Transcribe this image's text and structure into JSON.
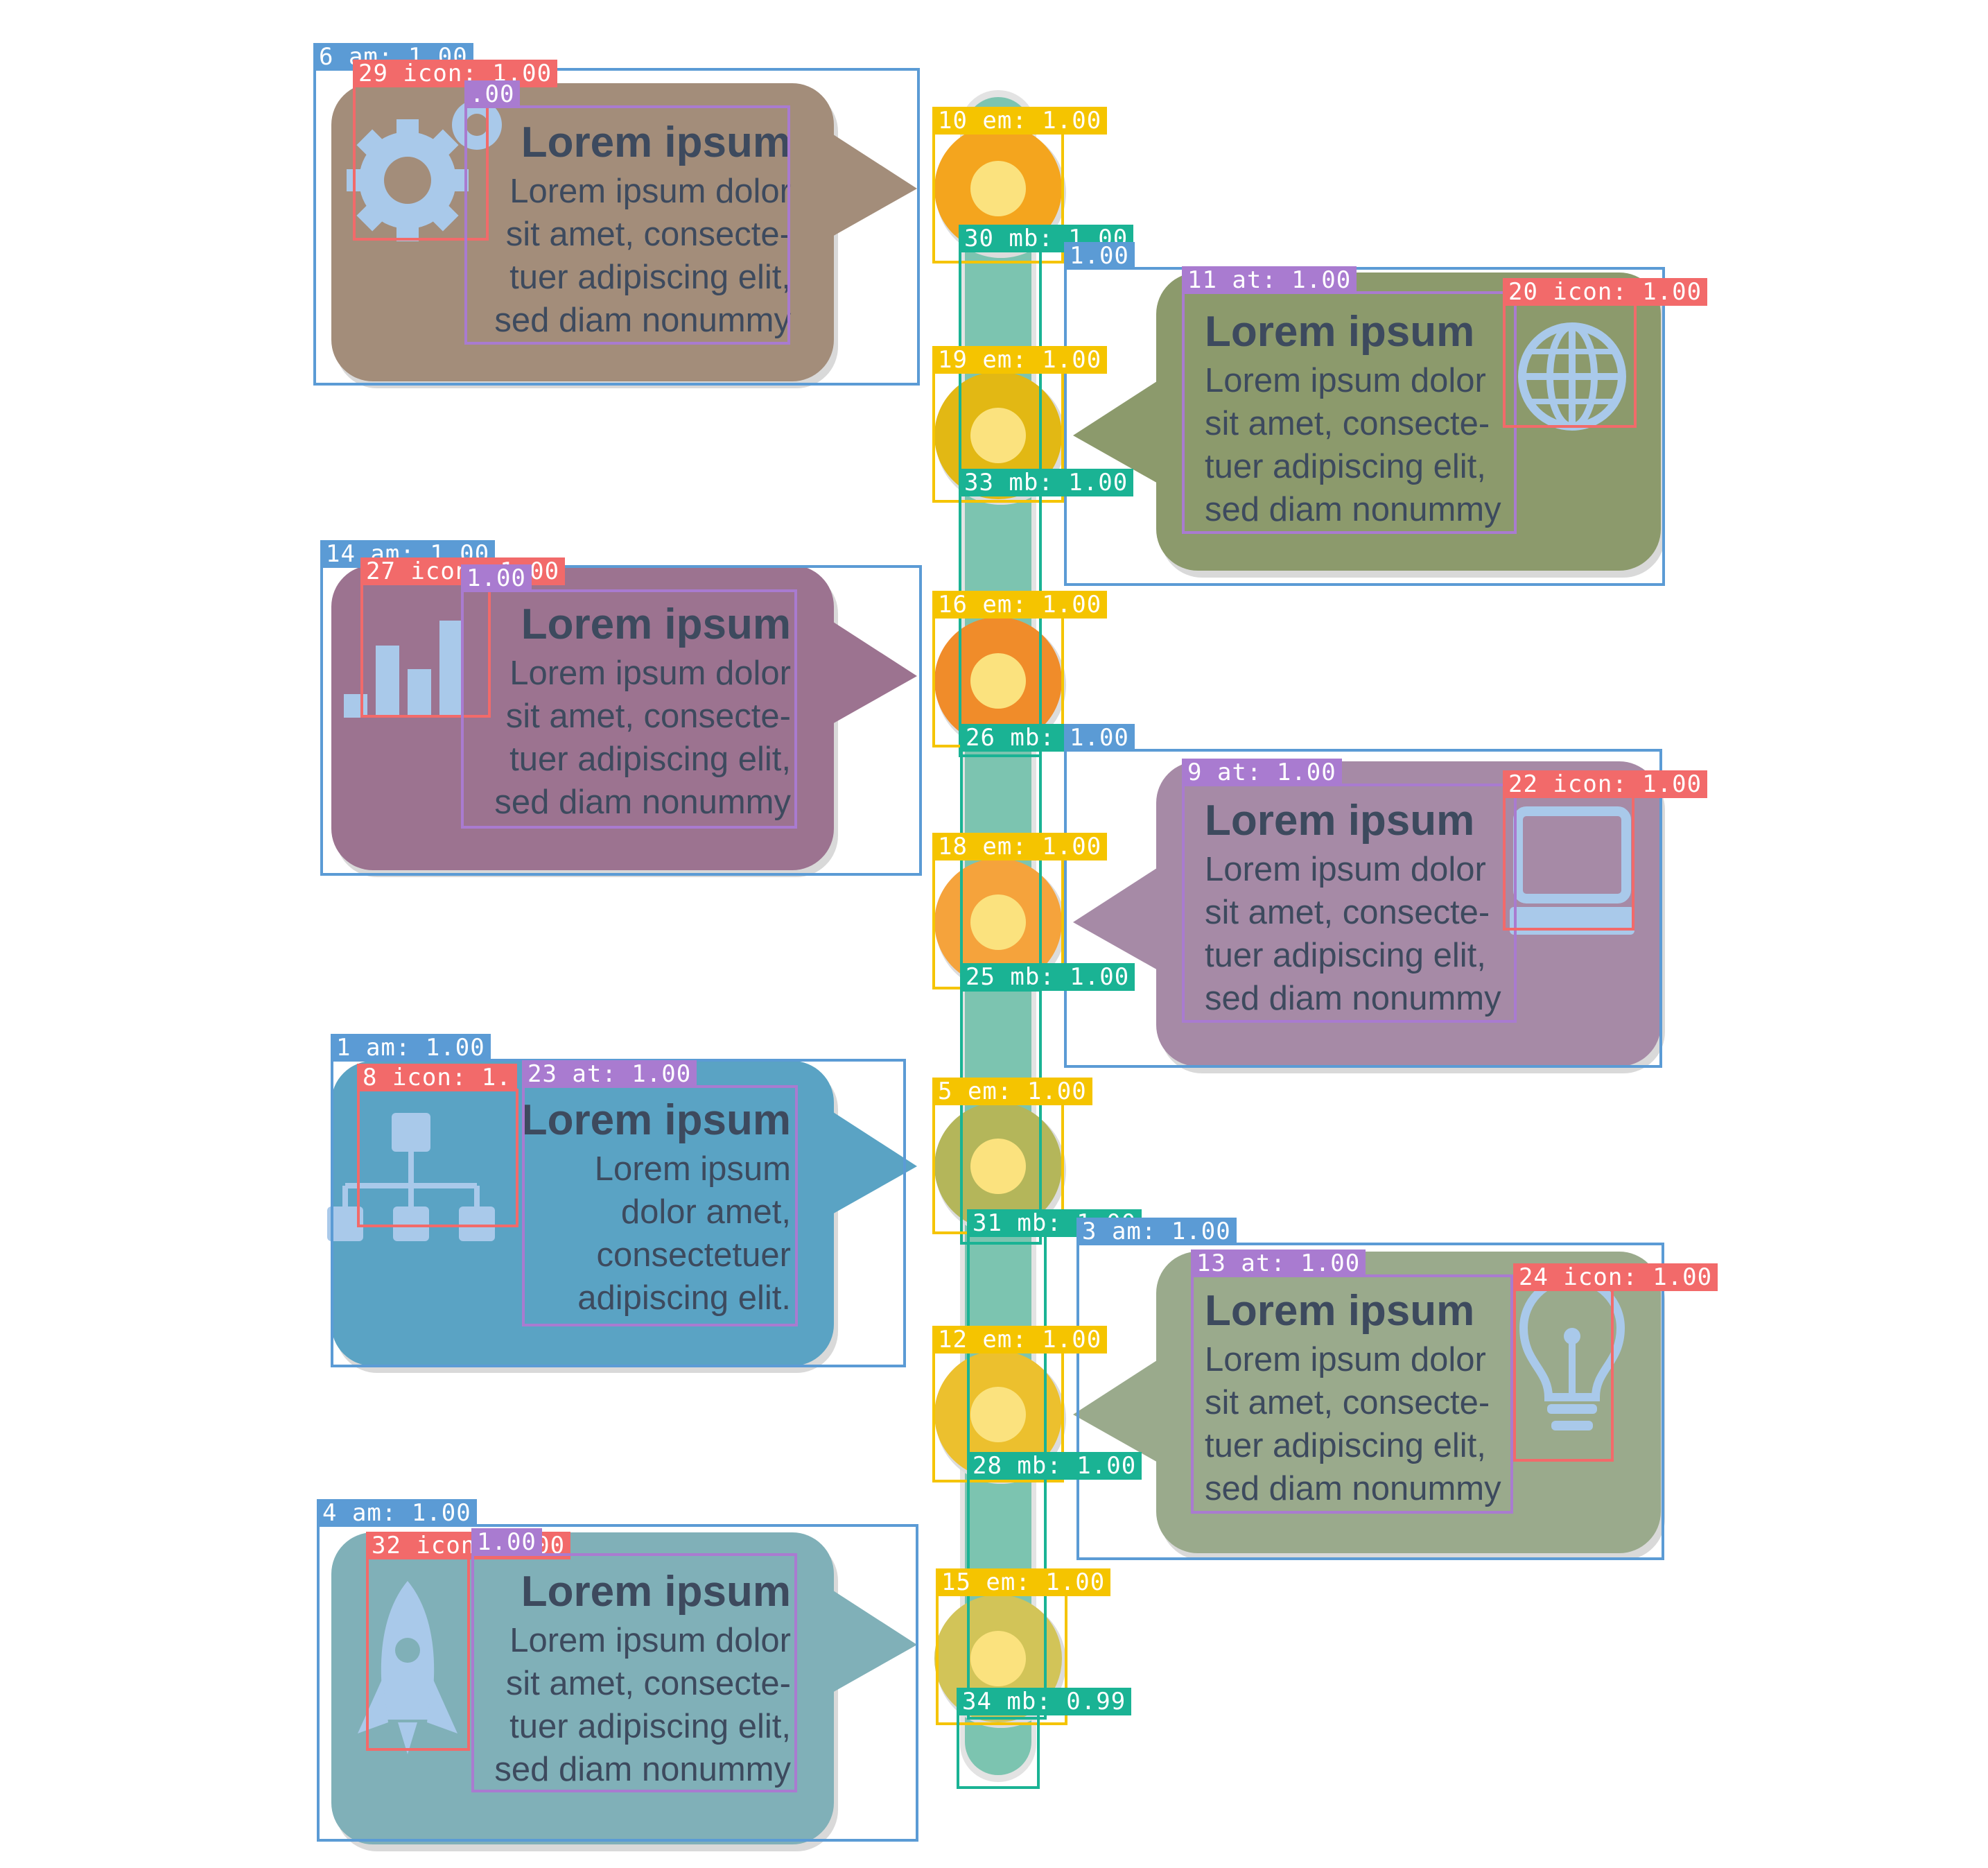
{
  "colors": {
    "am": "#5b9bd5",
    "at": "#a97bd0",
    "icon": "#f26a6a",
    "em": "#f5c400",
    "mb": "#1ab394",
    "backbone": "#7cc4b0",
    "icon_fill": "#a9c9ea",
    "text": "#3d4a5e"
  },
  "cards": [
    {
      "title": "Lorem ipsum",
      "lines": [
        "Lorem ipsum dolor",
        "sit amet, consecte-",
        "tuer adipiscing elit,",
        "sed diam nonummy"
      ],
      "fill": "#a38d7a",
      "icon": "gear-icon"
    },
    {
      "title": "Lorem ipsum",
      "lines": [
        "Lorem ipsum dolor",
        "sit amet, consecte-",
        "tuer adipiscing elit,",
        "sed diam nonummy"
      ],
      "fill": "#8c9a6c",
      "icon": "globe-icon"
    },
    {
      "title": "Lorem ipsum",
      "lines": [
        "Lorem ipsum dolor",
        "sit amet, consecte-",
        "tuer adipiscing elit,",
        "sed diam nonummy"
      ],
      "fill": "#9c7390",
      "icon": "bar-chart-icon"
    },
    {
      "title": "Lorem ipsum",
      "lines": [
        "Lorem ipsum dolor",
        "sit amet, consecte-",
        "tuer adipiscing elit,",
        "sed diam nonummy"
      ],
      "fill": "#a68aa6",
      "icon": "computer-icon"
    },
    {
      "title": "Lorem ipsum",
      "lines": [
        "Lorem ipsum",
        "dolor  amet,",
        "consectetuer",
        "adipiscing elit."
      ],
      "fill": "#5aa3c4",
      "icon": "org-chart-icon"
    },
    {
      "title": "Lorem ipsum",
      "lines": [
        "Lorem ipsum dolor",
        "sit amet, consecte-",
        "tuer adipiscing elit,",
        "sed diam nonummy"
      ],
      "fill": "#9aaa8c",
      "icon": "lightbulb-icon"
    },
    {
      "title": "Lorem ipsum",
      "lines": [
        "Lorem ipsum dolor",
        "sit amet, consecte-",
        "tuer adipiscing elit,",
        "sed diam nonummy"
      ],
      "fill": "#80b0b8",
      "icon": "rocket-icon"
    }
  ],
  "nodes": [
    {
      "fill": "#f4a51e"
    },
    {
      "fill": "#e2b814"
    },
    {
      "fill": "#f08c2a"
    },
    {
      "fill": "#f5a33c"
    },
    {
      "fill": "#b4b65a"
    },
    {
      "fill": "#ecc02e"
    },
    {
      "fill": "#d2c458"
    }
  ],
  "annotations": [
    {
      "label": "6  am:  1.00",
      "kind": "am"
    },
    {
      "label": "29  icon:  1.00",
      "kind": "icon"
    },
    {
      "label": ".00",
      "kind": "at"
    },
    {
      "label": "10  em:  1.00",
      "kind": "em"
    },
    {
      "label": "30  mb:  1.00",
      "kind": "mb"
    },
    {
      "label": "1.00",
      "kind": "am"
    },
    {
      "label": "11  at:  1.00",
      "kind": "at"
    },
    {
      "label": "20  icon:  1.00",
      "kind": "icon"
    },
    {
      "label": "19  em:  1.00",
      "kind": "em"
    },
    {
      "label": "33  mb:  1.00",
      "kind": "mb"
    },
    {
      "label": "14  am:  1.00",
      "kind": "am"
    },
    {
      "label": "27  icon:  1.00",
      "kind": "icon"
    },
    {
      "label": "1.00",
      "kind": "at"
    },
    {
      "label": "16  em:  1.00",
      "kind": "em"
    },
    {
      "label": "26  mb:  1.00",
      "kind": "mb"
    },
    {
      "label": "1.00",
      "kind": "am"
    },
    {
      "label": "9  at:  1.00",
      "kind": "at"
    },
    {
      "label": "22  icon:  1.00",
      "kind": "icon"
    },
    {
      "label": "18  em:  1.00",
      "kind": "em"
    },
    {
      "label": "25  mb:  1.00",
      "kind": "mb"
    },
    {
      "label": "1  am:  1.00",
      "kind": "am"
    },
    {
      "label": "8  icon:  1.",
      "kind": "icon"
    },
    {
      "label": "23  at:  1.00",
      "kind": "at"
    },
    {
      "label": "5  em:  1.00",
      "kind": "em"
    },
    {
      "label": "31  mb:  1.00",
      "kind": "mb"
    },
    {
      "label": "3  am:  1.00",
      "kind": "am"
    },
    {
      "label": "13  at:  1.00",
      "kind": "at"
    },
    {
      "label": "24  icon:  1.00",
      "kind": "icon"
    },
    {
      "label": "12  em:  1.00",
      "kind": "em"
    },
    {
      "label": "28  mb:  1.00",
      "kind": "mb"
    },
    {
      "label": "4  am:  1.00",
      "kind": "am"
    },
    {
      "label": "32  icon:  1.00",
      "kind": "icon"
    },
    {
      "label": "1.00",
      "kind": "at"
    },
    {
      "label": "15  em:  1.00",
      "kind": "em"
    },
    {
      "label": "34  mb:  0.99",
      "kind": "mb"
    }
  ]
}
